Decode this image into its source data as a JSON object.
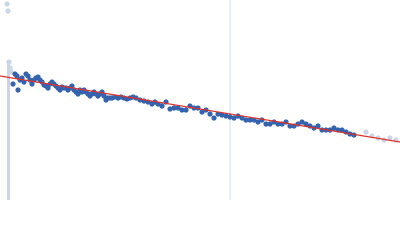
{
  "chart_data": {
    "type": "scatter",
    "xlim": [
      0,
      400
    ],
    "ylim": [
      0,
      200
    ],
    "series": [
      {
        "color": "#c9d6ea",
        "x": [
          7,
          8,
          9,
          10,
          11
        ],
        "values": [
          196,
          189,
          138,
          132,
          128
        ]
      },
      {
        "color": "#3563ad",
        "x": [
          13,
          15,
          17,
          18,
          20,
          22,
          24,
          26,
          28,
          30,
          32,
          34,
          36,
          38,
          40,
          42,
          44,
          46,
          48,
          50,
          52,
          54,
          56,
          58,
          60,
          62,
          64,
          66,
          68,
          70,
          72,
          74,
          76,
          78,
          80,
          82,
          84,
          86,
          88,
          90,
          92,
          94,
          96,
          98,
          100,
          102,
          104,
          106,
          108,
          110,
          112,
          115,
          118,
          121,
          124,
          127,
          130,
          133,
          136,
          140,
          144,
          148,
          152,
          155,
          158,
          162,
          166,
          170,
          174,
          178,
          182,
          186,
          190,
          194,
          198,
          202,
          206,
          210,
          214,
          218,
          222,
          226,
          230,
          234,
          238,
          242,
          246,
          250,
          254,
          258,
          262,
          266,
          270,
          274,
          278,
          282,
          286,
          290,
          294,
          298,
          302,
          306,
          310,
          314,
          318,
          322,
          326,
          330,
          334,
          338,
          342,
          346,
          350,
          354
        ],
        "values": [
          116,
          126,
          124,
          110,
          120,
          122,
          118,
          126,
          124,
          120,
          116,
          120,
          122,
          123,
          120,
          118,
          115,
          114,
          112,
          116,
          118,
          116,
          114,
          112,
          110,
          113,
          112,
          112,
          110,
          112,
          114,
          110,
          108,
          106,
          110,
          108,
          110,
          108,
          106,
          104,
          106,
          108,
          106,
          104,
          106,
          108,
          104,
          100,
          102,
          102,
          102,
          103,
          102,
          103,
          102,
          101,
          102,
          103,
          102,
          100,
          99,
          98,
          96,
          98,
          96,
          94,
          98,
          91,
          92,
          92,
          90,
          90,
          94,
          92,
          92,
          88,
          90,
          86,
          82,
          86,
          85,
          84,
          83,
          82,
          84,
          82,
          80,
          80,
          80,
          78,
          80,
          76,
          76,
          78,
          76,
          76,
          78,
          74,
          74,
          76,
          78,
          76,
          74,
          72,
          74,
          70,
          70,
          70,
          72,
          70,
          70,
          68,
          66,
          65
        ]
      },
      {
        "color": "#c9d6ea",
        "x": [
          366,
          372,
          378,
          384,
          390,
          396
        ],
        "values": [
          68,
          64,
          62,
          60,
          62,
          60
        ]
      }
    ],
    "fit": {
      "color": "#e0302a",
      "x": [
        0,
        400
      ],
      "values": [
        124,
        58
      ]
    }
  }
}
